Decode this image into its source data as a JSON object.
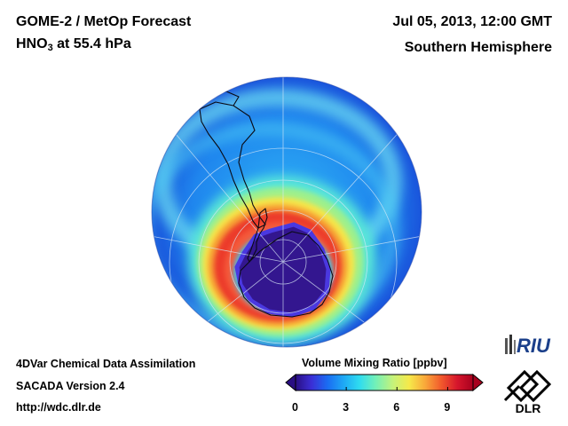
{
  "header": {
    "title_line1": "GOME-2 / MetOp Forecast",
    "species_main": "HNO",
    "species_sub": "3",
    "species_rest": " at 55.4 hPa",
    "date": "Jul 05, 2013, 12:00 GMT",
    "region": "Southern Hemisphere"
  },
  "footer": {
    "line1": "4DVar Chemical Data Assimilation",
    "line2": "SACADA Version 2.4",
    "line3": "http://wdc.dlr.de"
  },
  "colorbar": {
    "title": "Volume Mixing Ratio [ppbv]",
    "ticks": [
      "0",
      "3",
      "6",
      "9"
    ],
    "min": 0,
    "max": 10.5,
    "colors": [
      "#2a0e83",
      "#3b2fd6",
      "#1a6cf2",
      "#1ea8f5",
      "#2fdcf0",
      "#72f0b8",
      "#c6f27a",
      "#f6e94a",
      "#f9a83a",
      "#f25a2c",
      "#d6162c",
      "#a8001e"
    ]
  },
  "logos": {
    "riu_text": "RIU",
    "dlr_text": "DLR"
  },
  "map": {
    "projection": "orthographic, south polar view",
    "vortex_core_value_ppbv": 1,
    "collar_peak_value_ppbv": 9,
    "midlatitude_value_ppbv": 4
  }
}
